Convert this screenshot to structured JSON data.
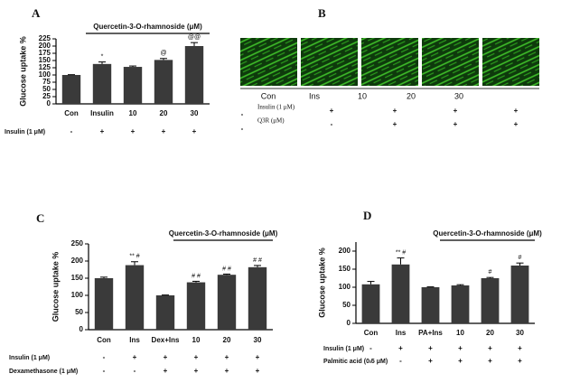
{
  "chart_data": [
    {
      "type": "bar",
      "panel_label": "A",
      "y_label": "Glucose uptake %",
      "bracket_label": "Quercetin-3-O-rhamnoside (μM)",
      "categories": [
        "Con",
        "Insulin",
        "10",
        "20",
        "30"
      ],
      "values": [
        100,
        138,
        128,
        152,
        200
      ],
      "errors": [
        1,
        7,
        3,
        5,
        12
      ],
      "bar_labels": [
        null,
        "*",
        null,
        "@",
        "@@"
      ],
      "color": "#3a3a3a",
      "ylim": [
        0,
        225
      ],
      "yticks": [
        0,
        25,
        50,
        75,
        100,
        125,
        150,
        175,
        200,
        225
      ],
      "conditions": [
        {
          "label": "Insulin (1 μM)",
          "signs": [
            "-",
            "+",
            "+",
            "+",
            "+"
          ]
        }
      ]
    },
    {
      "type": "bar",
      "panel_label": "C",
      "y_label": "Glucose uptake %",
      "bracket_label": "Quercetin-3-O-rhamnoside (μM)",
      "categories": [
        "Con",
        "Ins",
        "Dex+Ins",
        "10",
        "20",
        "30"
      ],
      "values": [
        150,
        188,
        100,
        138,
        160,
        182
      ],
      "errors": [
        3,
        10,
        1,
        3,
        2,
        5
      ],
      "bar_labels": [
        null,
        "** #",
        null,
        "# #",
        "# #",
        "# #"
      ],
      "color": "#3a3a3a",
      "ylim": [
        0,
        250
      ],
      "yticks": [
        0,
        50,
        100,
        150,
        200,
        250
      ],
      "conditions": [
        {
          "label": "Insulin (1 μM)",
          "signs": [
            "-",
            "+",
            "+",
            "+",
            "+",
            "+"
          ]
        },
        {
          "label": "Dexamethasone (1 μM)",
          "signs": [
            "-",
            "-",
            "+",
            "+",
            "+",
            "+"
          ]
        }
      ]
    },
    {
      "type": "bar",
      "panel_label": "D",
      "y_label": "Glucose uptake %",
      "bracket_label": "Quercetin-3-O-rhamnoside (μM)",
      "categories": [
        "Con",
        "Ins",
        "PA+Ins",
        "10",
        "20",
        "30"
      ],
      "values": [
        108,
        163,
        100,
        105,
        125,
        160
      ],
      "errors": [
        8,
        18,
        1,
        2,
        2,
        7
      ],
      "bar_labels": [
        null,
        "** #",
        null,
        null,
        "#",
        "#"
      ],
      "color": "#3a3a3a",
      "ylim": [
        0,
        225
      ],
      "yticks": [
        0,
        50,
        100,
        150,
        200
      ],
      "conditions": [
        {
          "label": "Insulin (1 μM)",
          "signs": [
            "-",
            "+",
            "+",
            "+",
            "+",
            "+"
          ]
        },
        {
          "label": "Palmitic acid (0.5 μM)",
          "signs": [
            "-",
            "-",
            "+",
            "+",
            "+",
            "+"
          ]
        }
      ]
    }
  ],
  "image_panel": {
    "panel_label": "B",
    "lanes": [
      "Con",
      "Ins",
      "10",
      "20",
      "30"
    ],
    "conditions": [
      {
        "label": "Insulin (1 μM)",
        "signs": [
          "-",
          "+",
          "+",
          "+",
          "+"
        ]
      },
      {
        "label": "Q3R (μM)",
        "signs": [
          "-",
          "-",
          "+",
          "+",
          "+"
        ]
      }
    ]
  }
}
